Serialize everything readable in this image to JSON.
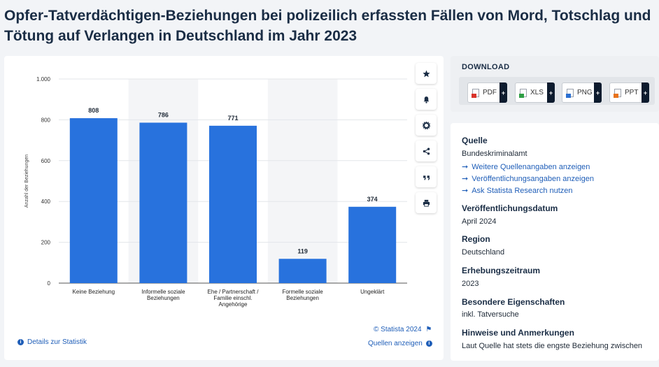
{
  "page_title": "Opfer-Tatverdächtigen-Beziehungen bei polizeilich erfassten Fällen von Mord, Totschlag und Tötung auf Verlangen in Deutschland im Jahr 2023",
  "chart_data": {
    "type": "bar",
    "categories": [
      [
        "Keine Beziehung"
      ],
      [
        "Informelle soziale",
        "Beziehungen"
      ],
      [
        "Ehe / Partnerschaft /",
        "Familie einschl.",
        "Angehörige"
      ],
      [
        "Formelle soziale",
        "Beziehungen"
      ],
      [
        "Ungeklärt"
      ]
    ],
    "values": [
      808,
      786,
      771,
      119,
      374
    ],
    "value_labels": [
      "808",
      "786",
      "771",
      "119",
      "374"
    ],
    "ylabel": "Anzahl der Beziehungen",
    "ylim": [
      0,
      1000
    ],
    "yticks": [
      0,
      200,
      400,
      600,
      800,
      1000
    ],
    "ytick_labels": [
      "0",
      "200",
      "400",
      "600",
      "800",
      "1.000"
    ],
    "bar_color": "#2872dd",
    "band_color": "#f4f5f7",
    "grid": true
  },
  "chart_footer": {
    "copyright": "© Statista 2024",
    "details_link": "Details zur Statistik",
    "sources_link": "Quellen anzeigen"
  },
  "tools": [
    "star-icon",
    "bell-icon",
    "gear-icon",
    "share-icon",
    "quote-icon",
    "print-icon"
  ],
  "download": {
    "heading": "DOWNLOAD",
    "buttons": [
      {
        "label": "PDF",
        "color": "#d9342b"
      },
      {
        "label": "XLS",
        "color": "#2f9e44"
      },
      {
        "label": "PNG",
        "color": "#2a6fd1"
      },
      {
        "label": "PPT",
        "color": "#e8731c"
      }
    ],
    "plus": "+"
  },
  "info": {
    "source_label": "Quelle",
    "source_value": "Bundeskriminalamt",
    "links": [
      "Weitere Quellenangaben anzeigen",
      "Veröffentlichungsangaben anzeigen",
      "Ask Statista Research nutzen"
    ],
    "pub_date_label": "Veröffentlichungsdatum",
    "pub_date_value": "April 2024",
    "region_label": "Region",
    "region_value": "Deutschland",
    "period_label": "Erhebungszeitraum",
    "period_value": "2023",
    "special_label": "Besondere Eigenschaften",
    "special_value": "inkl. Tatversuche",
    "notes_label": "Hinweise und Anmerkungen",
    "notes_value": "Laut Quelle hat stets die engste Beziehung zwischen"
  }
}
